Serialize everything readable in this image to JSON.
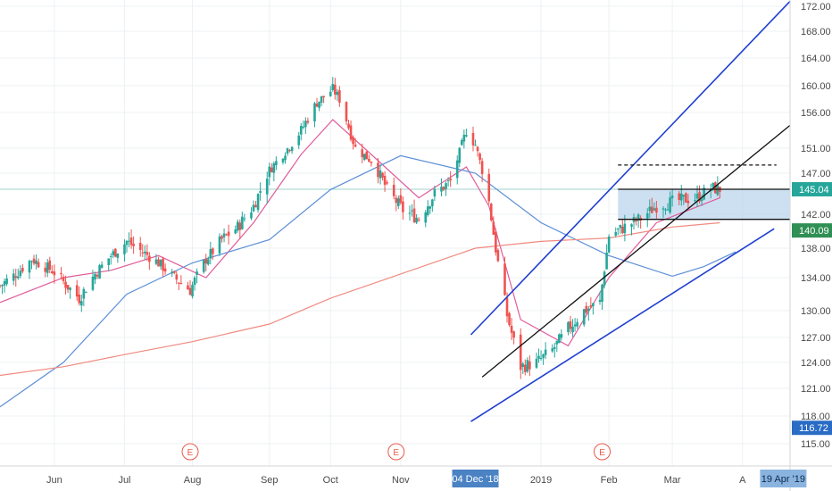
{
  "colors": {
    "up": "#26a69a",
    "down": "#ef5350",
    "grid": "#eef0f3",
    "ma_short": "#e05c9a",
    "ma_mid": "#5b8fd6",
    "ma_long": "#f08a80",
    "channel_blue": "#1f3fd1",
    "trend_black": "#111111",
    "zone_fill": "#bcd6ee",
    "last_price_bg": "#26a69a",
    "level_bg": "#2f8f54",
    "min_bg": "#2a6cc4",
    "date_tag_bg": "#4a82c3",
    "earnings": "#e9584a"
  },
  "chart_data": {
    "type": "candlestick",
    "title": "",
    "xlabel": "",
    "ylabel": "",
    "ylim": [
      113,
      173
    ],
    "grid": true,
    "y_ticks": [
      "115.00",
      "118.00",
      "121.00",
      "124.00",
      "127.00",
      "130.00",
      "134.00",
      "138.00",
      "142.00",
      "147.00",
      "151.00",
      "156.00",
      "160.00",
      "164.00",
      "168.00",
      "172.00"
    ],
    "x_ticks": [
      {
        "label": "Jun",
        "date": "2018-06-01"
      },
      {
        "label": "Jul",
        "date": "2018-07-02"
      },
      {
        "label": "Aug",
        "date": "2018-08-01"
      },
      {
        "label": "Sep",
        "date": "2018-09-04"
      },
      {
        "label": "Oct",
        "date": "2018-10-01"
      },
      {
        "label": "Nov",
        "date": "2018-11-01"
      },
      {
        "label": "2019",
        "date": "2019-01-02"
      },
      {
        "label": "Feb",
        "date": "2019-02-01"
      },
      {
        "label": "Mar",
        "date": "2019-03-01"
      },
      {
        "label": "A",
        "date": "2019-04-01"
      }
    ],
    "x_range": [
      "2018-05-08",
      "2019-04-22"
    ],
    "crosshair_date_label": "04 Dec '18",
    "crosshair_date": "2018-12-04",
    "axis_end_label": "19 Apr '19",
    "axis_end_date": "2019-04-19",
    "price_tags": [
      {
        "label": "145.04",
        "value": 145.04,
        "role": "last"
      },
      {
        "label": "140.09",
        "value": 140.09,
        "role": "level"
      },
      {
        "label": "116.72",
        "value": 116.72,
        "role": "min"
      }
    ],
    "earnings_markers": [
      {
        "label": "E",
        "date": "2018-07-31"
      },
      {
        "label": "E",
        "date": "2018-10-30"
      },
      {
        "label": "E",
        "date": "2019-01-29"
      }
    ],
    "close_path": [
      [
        "2018-05-08",
        133.0
      ],
      [
        "2018-05-15",
        134.5
      ],
      [
        "2018-05-22",
        136.5
      ],
      [
        "2018-05-31",
        135.0
      ],
      [
        "2018-06-05",
        133.5
      ],
      [
        "2018-06-12",
        131.5
      ],
      [
        "2018-06-19",
        134.5
      ],
      [
        "2018-06-26",
        137.0
      ],
      [
        "2018-07-03",
        138.8
      ],
      [
        "2018-07-10",
        137.5
      ],
      [
        "2018-07-17",
        136.0
      ],
      [
        "2018-07-24",
        134.0
      ],
      [
        "2018-07-31",
        132.5
      ],
      [
        "2018-08-07",
        136.5
      ],
      [
        "2018-08-14",
        139.0
      ],
      [
        "2018-08-21",
        140.5
      ],
      [
        "2018-08-28",
        143.0
      ],
      [
        "2018-09-04",
        147.5
      ],
      [
        "2018-09-11",
        150.5
      ],
      [
        "2018-09-18",
        153.5
      ],
      [
        "2018-09-25",
        157.5
      ],
      [
        "2018-10-02",
        159.5
      ],
      [
        "2018-10-05",
        158.0
      ],
      [
        "2018-10-12",
        151.0
      ],
      [
        "2018-10-19",
        149.0
      ],
      [
        "2018-10-26",
        145.0
      ],
      [
        "2018-11-02",
        142.5
      ],
      [
        "2018-11-09",
        141.5
      ],
      [
        "2018-11-16",
        144.5
      ],
      [
        "2018-11-23",
        146.0
      ],
      [
        "2018-11-30",
        153.5
      ],
      [
        "2018-12-04",
        151.5
      ],
      [
        "2018-12-10",
        143.5
      ],
      [
        "2018-12-14",
        136.0
      ],
      [
        "2018-12-18",
        129.5
      ],
      [
        "2018-12-24",
        123.5
      ],
      [
        "2018-12-31",
        124.0
      ],
      [
        "2019-01-07",
        125.5
      ],
      [
        "2019-01-14",
        128.0
      ],
      [
        "2019-01-21",
        130.0
      ],
      [
        "2019-01-28",
        131.0
      ],
      [
        "2019-02-01",
        139.5
      ],
      [
        "2019-02-08",
        140.5
      ],
      [
        "2019-02-15",
        141.5
      ],
      [
        "2019-02-22",
        143.0
      ],
      [
        "2019-03-01",
        143.5
      ],
      [
        "2019-03-06",
        143.8
      ],
      [
        "2019-03-12",
        144.0
      ],
      [
        "2019-03-18",
        145.2
      ],
      [
        "2019-03-22",
        145.04
      ]
    ],
    "indicators": [
      {
        "name": "",
        "color_key": "ma_short",
        "points": [
          [
            "2018-05-08",
            131
          ],
          [
            "2018-06-05",
            134
          ],
          [
            "2018-06-26",
            135
          ],
          [
            "2018-07-17",
            137
          ],
          [
            "2018-08-07",
            134
          ],
          [
            "2018-08-28",
            141
          ],
          [
            "2018-09-18",
            150
          ],
          [
            "2018-10-02",
            155
          ],
          [
            "2018-10-19",
            150
          ],
          [
            "2018-11-09",
            144
          ],
          [
            "2018-11-30",
            148
          ],
          [
            "2018-12-10",
            143
          ],
          [
            "2018-12-24",
            129
          ],
          [
            "2019-01-14",
            126
          ],
          [
            "2019-02-01",
            134
          ],
          [
            "2019-02-22",
            141
          ],
          [
            "2019-03-22",
            144
          ]
        ]
      },
      {
        "name": "",
        "color_key": "ma_mid",
        "points": [
          [
            "2018-05-08",
            119
          ],
          [
            "2018-06-05",
            124
          ],
          [
            "2018-07-03",
            132
          ],
          [
            "2018-08-01",
            136
          ],
          [
            "2018-09-04",
            139
          ],
          [
            "2018-10-01",
            145
          ],
          [
            "2018-11-01",
            149.8
          ],
          [
            "2018-12-04",
            147
          ],
          [
            "2019-01-02",
            141
          ],
          [
            "2019-02-01",
            137.0
          ],
          [
            "2019-03-01",
            134.2
          ],
          [
            "2019-03-15",
            135.5
          ],
          [
            "2019-03-29",
            137.5
          ]
        ]
      },
      {
        "name": "",
        "color_key": "ma_long",
        "points": [
          [
            "2018-05-08",
            122.5
          ],
          [
            "2018-06-05",
            123.5
          ],
          [
            "2018-07-03",
            125
          ],
          [
            "2018-08-01",
            126.5
          ],
          [
            "2018-09-04",
            128.5
          ],
          [
            "2018-10-01",
            131.5
          ],
          [
            "2018-11-01",
            134.5
          ],
          [
            "2018-12-04",
            138
          ],
          [
            "2019-01-02",
            138.8
          ],
          [
            "2019-02-01",
            139.2
          ],
          [
            "2019-03-01",
            140.5
          ],
          [
            "2019-03-22",
            141
          ]
        ]
      }
    ],
    "drawings": [
      {
        "kind": "line",
        "color_key": "channel_blue",
        "from": [
          "2018-12-02",
          127.3
        ],
        "to": [
          "2019-04-22",
          172.8
        ]
      },
      {
        "kind": "line",
        "color_key": "channel_blue",
        "from": [
          "2018-12-02",
          117.4
        ],
        "to": [
          "2019-04-15",
          140.3
        ]
      },
      {
        "kind": "line",
        "color_key": "trend_black",
        "from": [
          "2018-12-07",
          122.3
        ],
        "to": [
          "2019-04-22",
          154.2
        ]
      },
      {
        "kind": "line",
        "color_key": "trend_black",
        "from": [
          "2019-02-05",
          145.04
        ],
        "to": [
          "2019-04-22",
          145.04
        ]
      },
      {
        "kind": "line",
        "color_key": "trend_black",
        "from": [
          "2019-02-05",
          141.4
        ],
        "to": [
          "2019-04-22",
          141.4
        ]
      },
      {
        "kind": "dashed",
        "color_key": "trend_black",
        "from": [
          "2019-02-05",
          148.3
        ],
        "to": [
          "2019-04-16",
          148.3
        ]
      },
      {
        "kind": "zone",
        "color_key": "zone_fill",
        "from": [
          "2019-02-05",
          145.04
        ],
        "to": [
          "2019-04-22",
          141.4
        ]
      }
    ]
  }
}
